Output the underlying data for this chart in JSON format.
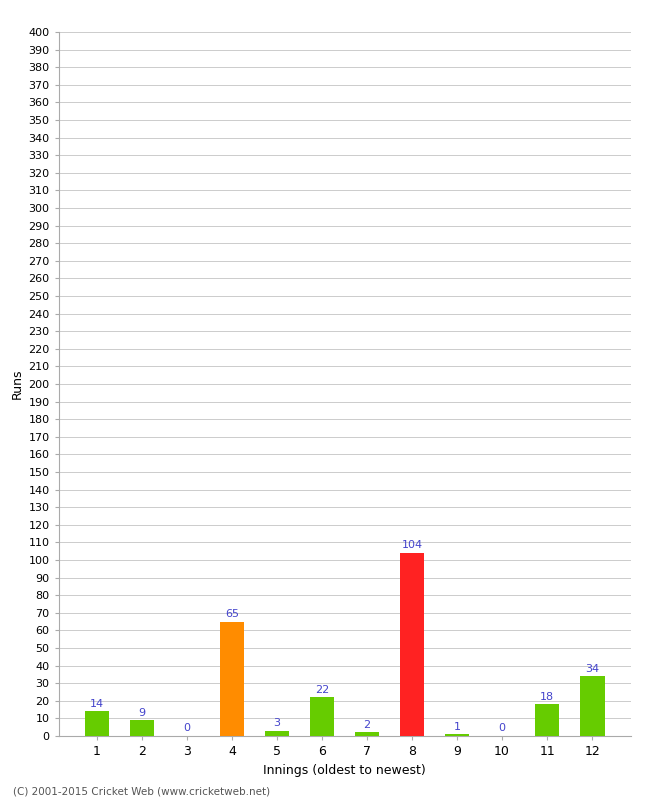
{
  "xlabel": "Innings (oldest to newest)",
  "ylabel": "Runs",
  "categories": [
    1,
    2,
    3,
    4,
    5,
    6,
    7,
    8,
    9,
    10,
    11,
    12
  ],
  "values": [
    14,
    9,
    0,
    65,
    3,
    22,
    2,
    104,
    1,
    0,
    18,
    34
  ],
  "bar_colors": [
    "#66cc00",
    "#66cc00",
    "#66cc00",
    "#ff8c00",
    "#66cc00",
    "#66cc00",
    "#66cc00",
    "#ff2222",
    "#66cc00",
    "#66cc00",
    "#66cc00",
    "#66cc00"
  ],
  "ylim": [
    0,
    400
  ],
  "ytick_step": 10,
  "label_color": "#4444cc",
  "background_color": "#ffffff",
  "grid_color": "#cccccc",
  "footer": "(C) 2001-2015 Cricket Web (www.cricketweb.net)"
}
